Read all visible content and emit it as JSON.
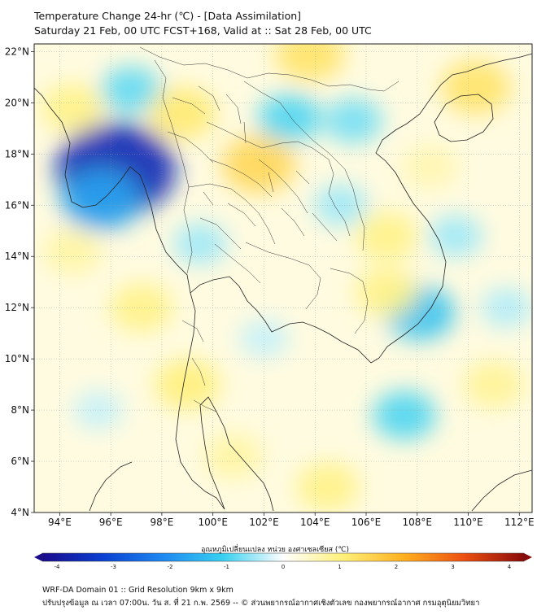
{
  "title": {
    "line1": "Temperature Change 24-hr (℃) - [Data Assimilation]",
    "line2": "Saturday 21 Feb, 00 UTC FCST+168, Valid at :: Sat 28 Feb, 00 UTC"
  },
  "map": {
    "lat_labels": [
      "22°N",
      "20°N",
      "18°N",
      "16°N",
      "14°N",
      "12°N",
      "10°N",
      "8°N",
      "6°N",
      "4°N"
    ],
    "lon_labels": [
      "94°E",
      "96°E",
      "98°E",
      "100°E",
      "102°E",
      "104°E",
      "106°E",
      "108°E",
      "110°E",
      "112°E"
    ],
    "lat_values": [
      22,
      20,
      18,
      16,
      14,
      12,
      10,
      8,
      6,
      4
    ],
    "lon_values": [
      94,
      96,
      98,
      100,
      102,
      104,
      106,
      108,
      110,
      112
    ],
    "lon_range": [
      93,
      112.5
    ],
    "lat_range": [
      4,
      22.3
    ],
    "grid": true,
    "anomalies": [
      {
        "lon": 96.2,
        "lat": 17.4,
        "value": -3.4
      },
      {
        "lon": 95.6,
        "lat": 16.2,
        "value": -1.6
      },
      {
        "lon": 96.8,
        "lat": 20.5,
        "value": -0.8
      },
      {
        "lon": 103.0,
        "lat": 19.4,
        "value": -0.9
      },
      {
        "lon": 105.5,
        "lat": 19.3,
        "value": -0.7
      },
      {
        "lon": 108.1,
        "lat": 11.8,
        "value": -1.2
      },
      {
        "lon": 107.5,
        "lat": 7.8,
        "value": -0.9
      },
      {
        "lon": 99.5,
        "lat": 14.5,
        "value": -0.5
      },
      {
        "lon": 105.0,
        "lat": 16.0,
        "value": -0.5
      },
      {
        "lon": 109.5,
        "lat": 14.8,
        "value": -0.5
      },
      {
        "lon": 111.5,
        "lat": 12.0,
        "value": -0.4
      },
      {
        "lon": 102.0,
        "lat": 10.8,
        "value": -0.3
      },
      {
        "lon": 95.5,
        "lat": 8.0,
        "value": -0.3
      },
      {
        "lon": 101.8,
        "lat": 17.6,
        "value": 1.4
      },
      {
        "lon": 98.8,
        "lat": 19.6,
        "value": 1.1
      },
      {
        "lon": 103.8,
        "lat": 21.9,
        "value": 1.2
      },
      {
        "lon": 110.3,
        "lat": 20.6,
        "value": 1.2
      },
      {
        "lon": 94.5,
        "lat": 19.8,
        "value": 0.9
      },
      {
        "lon": 99.0,
        "lat": 9.0,
        "value": 1.0
      },
      {
        "lon": 104.5,
        "lat": 5.0,
        "value": 0.9
      },
      {
        "lon": 106.8,
        "lat": 14.8,
        "value": 0.9
      },
      {
        "lon": 97.2,
        "lat": 12.0,
        "value": 0.9
      },
      {
        "lon": 111.0,
        "lat": 9.0,
        "value": 0.8
      },
      {
        "lon": 106.8,
        "lat": 12.6,
        "value": 0.9
      },
      {
        "lon": 94.5,
        "lat": 14.2,
        "value": 0.7
      },
      {
        "lon": 100.8,
        "lat": 6.2,
        "value": 0.7
      },
      {
        "lon": 108.5,
        "lat": 17.5,
        "value": 0.6
      }
    ]
  },
  "colorbar": {
    "label": "อุณหภูมิเปลี่ยนแปลง หน่วย องศาเซลเซียส (℃)",
    "range": [
      -4,
      4
    ],
    "ticks": [
      "-4",
      "-3",
      "-2",
      "-1",
      "0",
      "1",
      "2",
      "3",
      "4"
    ],
    "colors": [
      "#1a0a8c",
      "#0a3fd0",
      "#1e88f0",
      "#38d0f0",
      "#ffffff",
      "#fff07a",
      "#ffb020",
      "#ec5010",
      "#8a0a0a"
    ]
  },
  "footer": {
    "line1": "WRF-DA Domain 01 :: Grid Resolution 9km x 9km",
    "line2": "ปรับปรุงข้อมูล ณ เวลา 07:00น. วัน ส. ที่ 21 ก.พ. 2569 -- © ส่วนพยากรณ์อากาศเชิงตัวเลข กองพยากรณ์อากาศ กรมอุตุนิยมวิทยา"
  }
}
